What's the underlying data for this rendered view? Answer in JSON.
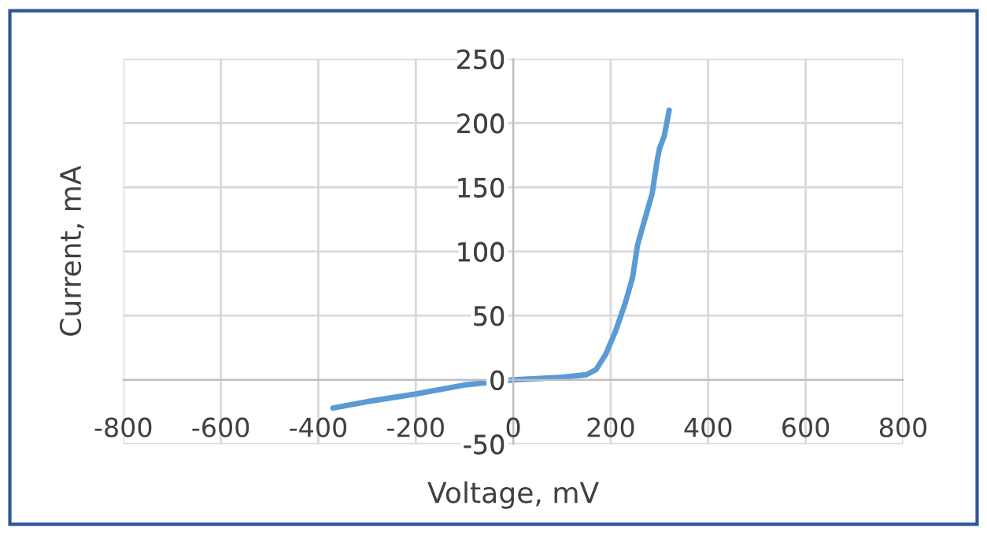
{
  "chart_data": {
    "type": "line",
    "xlabel": "Voltage, mV",
    "ylabel": "Current, mA",
    "series": [
      {
        "color": "#5b9bd5",
        "x": [
          -370,
          -300,
          -200,
          -100,
          0,
          100,
          150,
          170,
          190,
          210,
          230,
          245,
          255,
          270,
          285,
          295,
          300,
          310,
          320
        ],
        "values": [
          -22,
          -17,
          -11,
          -4,
          0,
          2,
          4,
          8,
          20,
          38,
          60,
          80,
          105,
          125,
          145,
          170,
          180,
          190,
          210
        ]
      }
    ],
    "xlim": [
      -800,
      800
    ],
    "xticks": [
      -800,
      -600,
      -400,
      -200,
      0,
      200,
      400,
      600,
      800
    ],
    "ylim": [
      -50,
      250
    ],
    "yticks": [
      -50,
      0,
      50,
      100,
      150,
      200,
      250
    ],
    "grid": true,
    "marker": "none",
    "line_style": "solid",
    "legend": false
  }
}
